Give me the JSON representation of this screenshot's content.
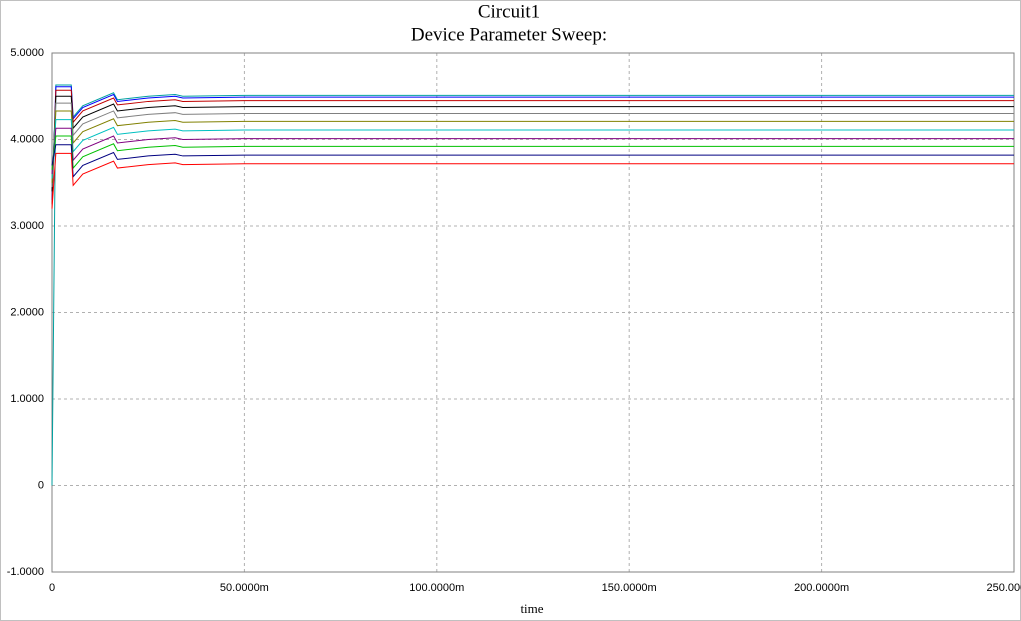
{
  "chart_data": {
    "type": "line",
    "title": "Circuit1",
    "subtitle": "Device Parameter Sweep:",
    "x_label": "time",
    "x": [
      0,
      0.001,
      0.005,
      0.0055,
      0.008,
      0.016,
      0.017,
      0.025,
      0.032,
      0.034,
      0.05,
      0.1,
      0.15,
      0.2,
      0.25
    ],
    "xlim": [
      0,
      0.25
    ],
    "xticks": [
      0,
      {
        "value": 0.05,
        "label": "50.0000m"
      },
      {
        "value": 0.1,
        "label": "100.0000m"
      },
      {
        "value": 0.15,
        "label": "150.0000m"
      },
      {
        "value": 0.2,
        "label": "200.0000m"
      },
      {
        "value": 0.25,
        "label": "250.0000m"
      }
    ],
    "ylim": [
      -1,
      5
    ],
    "yticks": [
      {
        "value": -1,
        "label": "-1.0000"
      },
      0,
      {
        "value": 1,
        "label": "1.0000"
      },
      {
        "value": 2,
        "label": "2.0000"
      },
      {
        "value": 3,
        "label": "3.0000"
      },
      {
        "value": 4,
        "label": "4.0000"
      },
      {
        "value": 5,
        "label": "5.0000"
      }
    ],
    "grid": true,
    "series": [
      {
        "color": "#00a0a0",
        "values": [
          0,
          4.63,
          4.63,
          4.26,
          4.39,
          4.54,
          4.46,
          4.5,
          4.52,
          4.5,
          4.51,
          4.51,
          4.51,
          4.51,
          4.51
        ]
      },
      {
        "color": "#0000ff",
        "values": [
          3.3,
          4.61,
          4.61,
          4.24,
          4.37,
          4.52,
          4.44,
          4.48,
          4.5,
          4.48,
          4.49,
          4.49,
          4.49,
          4.49,
          4.49
        ]
      },
      {
        "color": "#c00000",
        "values": [
          3.25,
          4.57,
          4.57,
          4.2,
          4.33,
          4.48,
          4.4,
          4.44,
          4.46,
          4.44,
          4.45,
          4.45,
          4.45,
          4.45,
          4.45
        ]
      },
      {
        "color": "#000000",
        "values": [
          3.4,
          4.5,
          4.5,
          4.13,
          4.26,
          4.41,
          4.33,
          4.37,
          4.39,
          4.37,
          4.38,
          4.38,
          4.38,
          4.38,
          4.38
        ]
      },
      {
        "color": "#808080",
        "values": [
          3.45,
          4.42,
          4.42,
          4.05,
          4.18,
          4.33,
          4.25,
          4.29,
          4.31,
          4.29,
          4.3,
          4.3,
          4.3,
          4.3,
          4.3
        ]
      },
      {
        "color": "#808000",
        "values": [
          3.5,
          4.33,
          4.33,
          3.96,
          4.09,
          4.24,
          4.16,
          4.2,
          4.22,
          4.2,
          4.21,
          4.21,
          4.21,
          4.21,
          4.21
        ]
      },
      {
        "color": "#00c0c0",
        "values": [
          3.55,
          4.23,
          4.23,
          3.86,
          3.99,
          4.14,
          4.06,
          4.1,
          4.12,
          4.1,
          4.11,
          4.11,
          4.11,
          4.11,
          4.11
        ]
      },
      {
        "color": "#800080",
        "values": [
          3.6,
          4.13,
          4.13,
          3.76,
          3.89,
          4.04,
          3.96,
          4.0,
          4.02,
          4.0,
          4.01,
          4.01,
          4.01,
          4.01,
          4.01
        ]
      },
      {
        "color": "#00c000",
        "values": [
          3.65,
          4.04,
          4.04,
          3.67,
          3.8,
          3.95,
          3.87,
          3.91,
          3.93,
          3.91,
          3.92,
          3.92,
          3.92,
          3.92,
          3.92
        ]
      },
      {
        "color": "#000080",
        "values": [
          3.7,
          3.94,
          3.94,
          3.57,
          3.7,
          3.85,
          3.77,
          3.81,
          3.83,
          3.81,
          3.82,
          3.82,
          3.82,
          3.82,
          3.82
        ]
      },
      {
        "color": "#ff0000",
        "values": [
          3.2,
          3.84,
          3.84,
          3.47,
          3.6,
          3.75,
          3.67,
          3.71,
          3.73,
          3.71,
          3.72,
          3.72,
          3.72,
          3.72,
          3.72
        ]
      }
    ]
  }
}
